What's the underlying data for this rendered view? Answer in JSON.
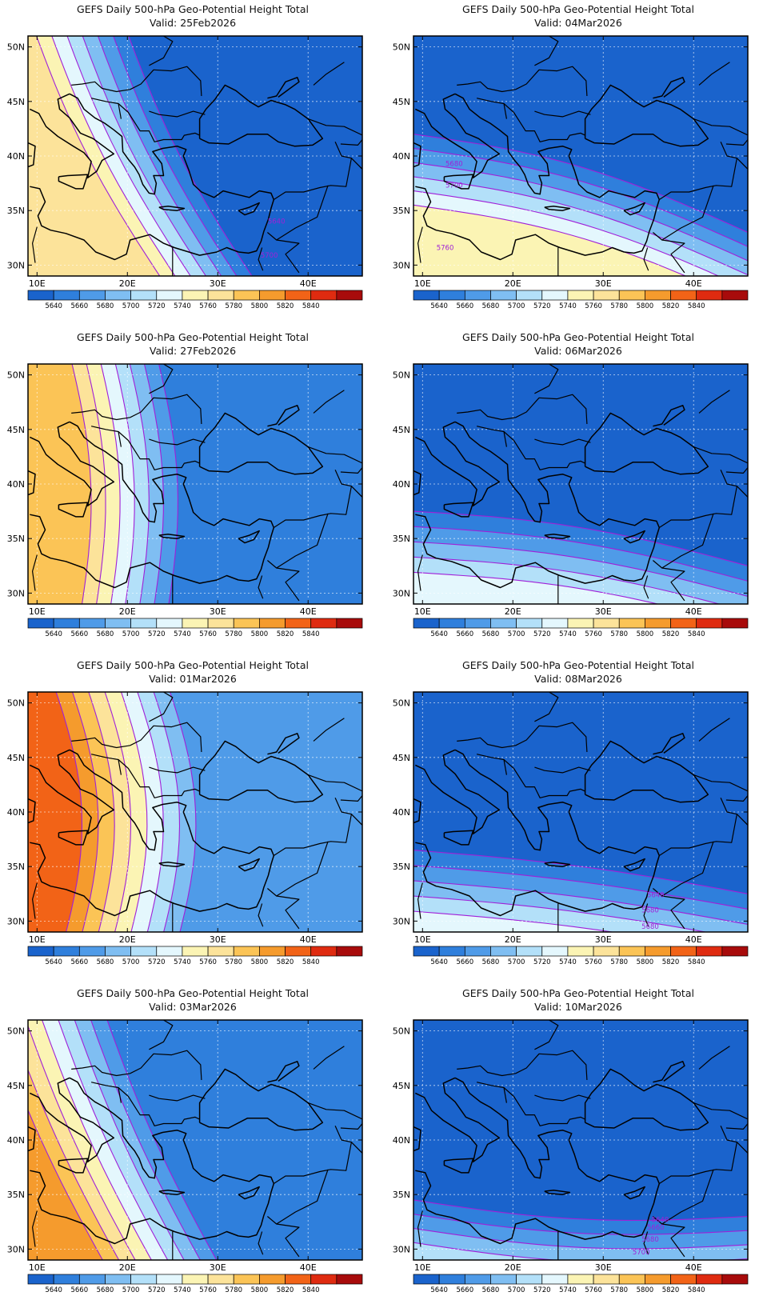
{
  "common": {
    "title": "GEFS Daily 500-hPa Geo-Potential Height Total",
    "valid_prefix": "Valid:",
    "lat_ticks": [
      "30N",
      "35N",
      "40N",
      "45N",
      "50N"
    ],
    "lon_ticks": [
      "10E",
      "20E",
      "30E",
      "40E"
    ],
    "lat_values": [
      30,
      35,
      40,
      45,
      50
    ],
    "lon_values": [
      10,
      20,
      30,
      40
    ],
    "extent": {
      "lon": [
        9,
        46
      ],
      "lat": [
        29,
        51
      ]
    },
    "colorbar": {
      "labels": [
        "5640",
        "5660",
        "5680",
        "5700",
        "5720",
        "5740",
        "5760",
        "5780",
        "5800",
        "5820",
        "5840"
      ],
      "colors": [
        "#1a63cc",
        "#2f7fdc",
        "#4f9be8",
        "#7fbef2",
        "#b3e0f9",
        "#e4f7fd",
        "#fbf4b4",
        "#fce39a",
        "#fbc456",
        "#f59b2d",
        "#f26317",
        "#df2b10",
        "#a80b0b"
      ]
    },
    "contour_color": "#a020d8"
  },
  "panels": [
    {
      "valid": "25Feb2026",
      "labels": [
        {
          "text": "5640",
          "lon": 36.5,
          "lat": 33.8
        },
        {
          "text": "5700",
          "lon": 35.7,
          "lat": 30.7
        }
      ]
    },
    {
      "valid": "04Mar2026",
      "labels": [
        {
          "text": "5680",
          "lon": 13.5,
          "lat": 39.1
        },
        {
          "text": "5700",
          "lon": 13.5,
          "lat": 37.1
        },
        {
          "text": "5760",
          "lon": 12.5,
          "lat": 31.4
        }
      ]
    },
    {
      "valid": "27Feb2026",
      "labels": []
    },
    {
      "valid": "06Mar2026",
      "labels": []
    },
    {
      "valid": "01Mar2026",
      "labels": []
    },
    {
      "valid": "08Mar2026",
      "labels": [
        {
          "text": "5640",
          "lon": 35.8,
          "lat": 32.2
        },
        {
          "text": "5680",
          "lon": 35.2,
          "lat": 30.8
        },
        {
          "text": "5680",
          "lon": 35.2,
          "lat": 29.3
        }
      ]
    },
    {
      "valid": "03Mar2026",
      "labels": []
    },
    {
      "valid": "10Mar2026",
      "labels": [
        {
          "text": "5640",
          "lon": 36.3,
          "lat": 32.5
        },
        {
          "text": "5660",
          "lon": 35.8,
          "lat": 31.8
        },
        {
          "text": "5680",
          "lon": 35.2,
          "lat": 30.7
        },
        {
          "text": "5700",
          "lon": 34.2,
          "lat": 29.5
        }
      ]
    }
  ]
}
